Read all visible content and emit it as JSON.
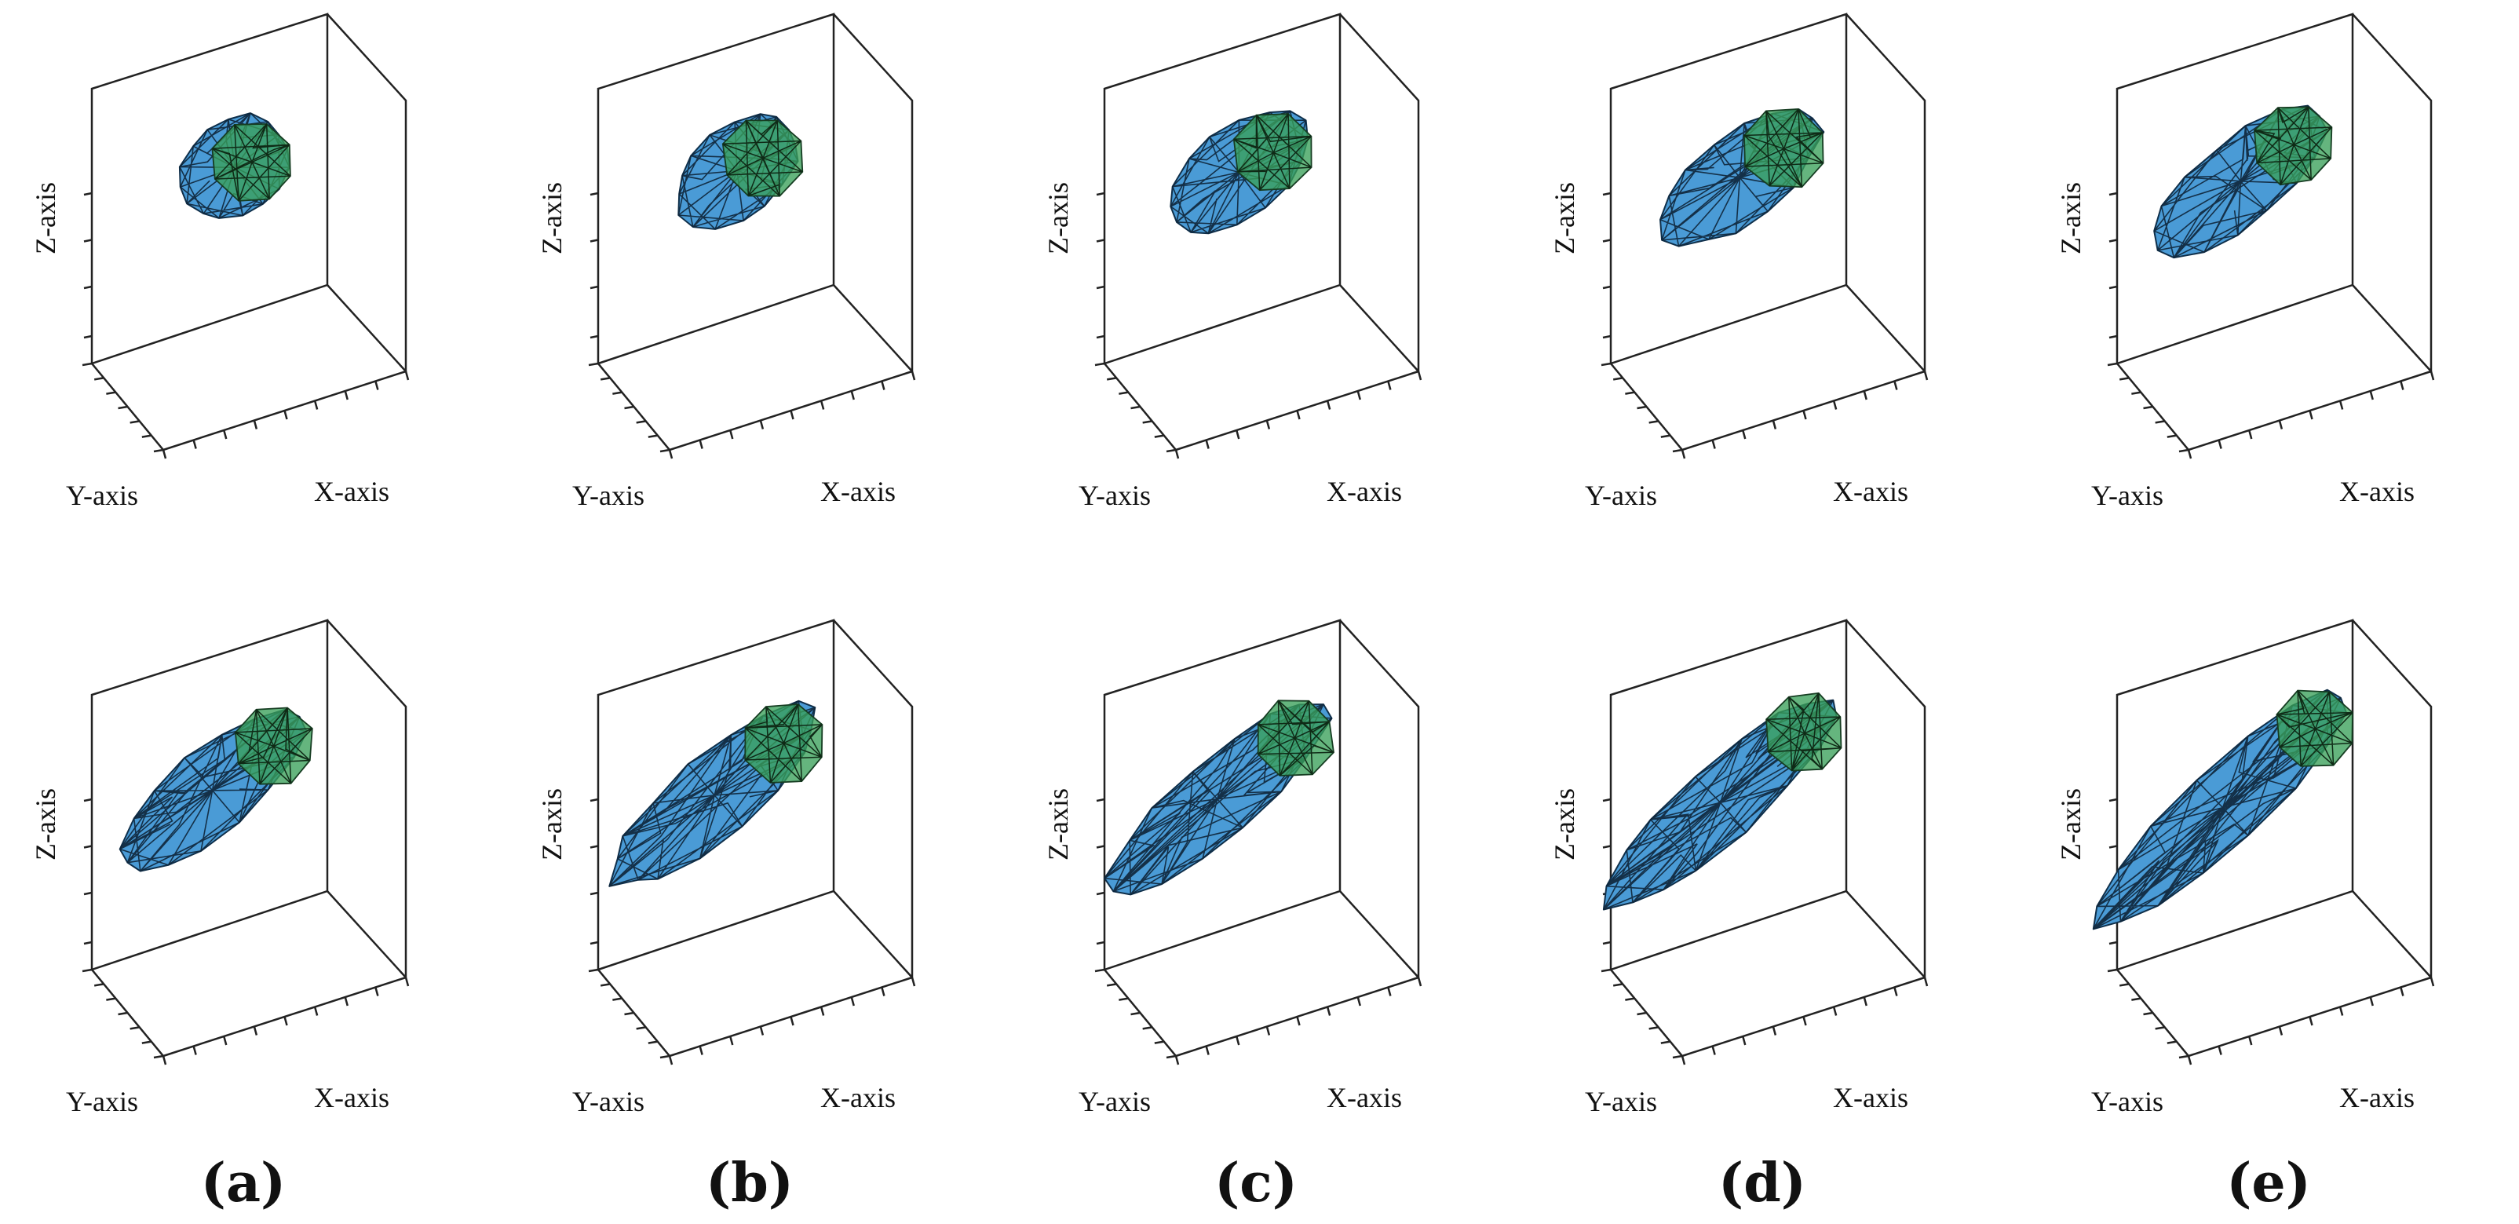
{
  "figure": {
    "rows": 2,
    "columns": 5,
    "axis_labels": {
      "x": "X-axis",
      "y": "Y-axis",
      "z": "Z-axis"
    },
    "captions": [
      "(a)",
      "(b)",
      "(c)",
      "(d)",
      "(e)"
    ],
    "colors": {
      "outer_mesh": "#4a9bd6",
      "inner_core": "#3aa05a",
      "edges": "#0e2538",
      "frame": "#222222"
    },
    "panels": [
      {
        "id": "top-a",
        "row": 1,
        "column": "a"
      },
      {
        "id": "top-b",
        "row": 1,
        "column": "b"
      },
      {
        "id": "top-c",
        "row": 1,
        "column": "c"
      },
      {
        "id": "top-d",
        "row": 1,
        "column": "d"
      },
      {
        "id": "top-e",
        "row": 1,
        "column": "e"
      },
      {
        "id": "bottom-a",
        "row": 2,
        "column": "a"
      },
      {
        "id": "bottom-b",
        "row": 2,
        "column": "b"
      },
      {
        "id": "bottom-c",
        "row": 2,
        "column": "c"
      },
      {
        "id": "bottom-d",
        "row": 2,
        "column": "d"
      },
      {
        "id": "bottom-e",
        "row": 2,
        "column": "e"
      }
    ]
  }
}
